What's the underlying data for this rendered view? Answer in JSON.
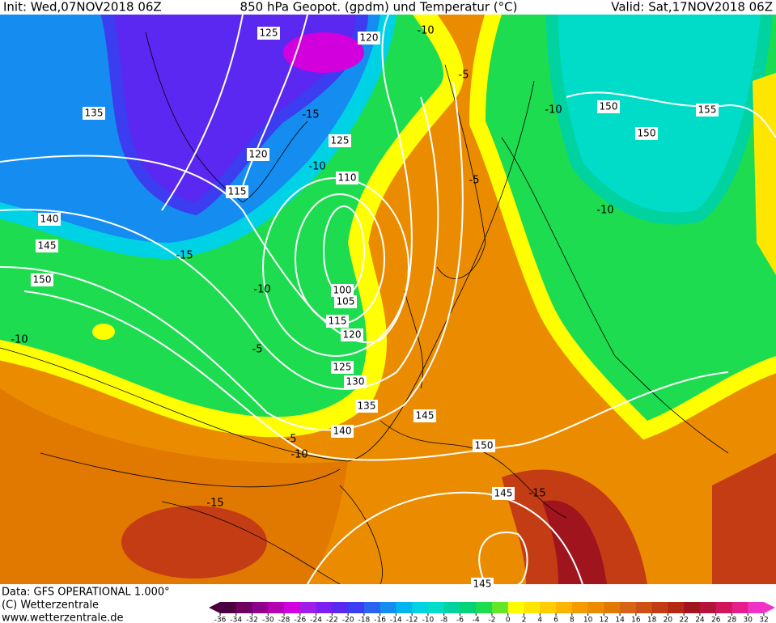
{
  "header": {
    "init": "Init: Wed,07NOV2018 06Z",
    "title": "850 hPa Geopot. (gpdm) und Temperatur (°C)",
    "valid": "Valid: Sat,17NOV2018 06Z"
  },
  "footer": {
    "data": "Data: GFS OPERATIONAL 1.000°",
    "copyright": "(C) Wetterzentrale",
    "url": "www.wetterzentrale.de"
  },
  "legend": {
    "ticks": [
      -36,
      -34,
      -32,
      -30,
      -28,
      -26,
      -24,
      -22,
      -20,
      -18,
      -16,
      -14,
      -12,
      -10,
      -8,
      -6,
      -4,
      -2,
      0,
      2,
      4,
      6,
      8,
      10,
      12,
      14,
      16,
      18,
      20,
      22,
      24,
      26,
      28,
      30,
      32
    ],
    "colors": [
      "#4b0040",
      "#6e0064",
      "#91008c",
      "#b400b4",
      "#d200dc",
      "#a01ee6",
      "#7d1ef0",
      "#5a28f0",
      "#3c3cf0",
      "#2864f0",
      "#148cf0",
      "#00b4f0",
      "#00d2e6",
      "#00dcc8",
      "#00d2a0",
      "#00d278",
      "#1edc50",
      "#64e628",
      "#ffff00",
      "#ffe600",
      "#ffcd00",
      "#ffb400",
      "#f59b00",
      "#eb8c00",
      "#e17800",
      "#d76414",
      "#cd5014",
      "#c33c14",
      "#b42814",
      "#a0141e",
      "#b4143c",
      "#d2145a",
      "#e61e8c",
      "#f032c8"
    ]
  },
  "contours": {
    "geopotential_labels": [
      125,
      120,
      135,
      120,
      125,
      115,
      110,
      140,
      145,
      150,
      100,
      105,
      115,
      120,
      125,
      130,
      135,
      140,
      145,
      150,
      150,
      155,
      150,
      145,
      145
    ],
    "temperature_labels": [
      -10,
      -5,
      -15,
      -10,
      -15,
      -10,
      -5,
      -10,
      -5,
      -10,
      -5,
      -15,
      -10,
      -10,
      -15
    ]
  }
}
